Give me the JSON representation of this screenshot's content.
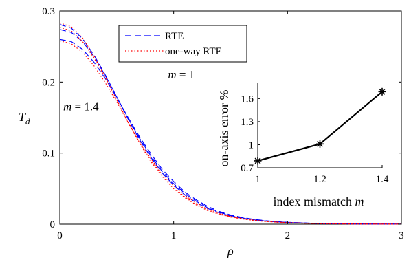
{
  "chart_data": [
    {
      "type": "line",
      "title": "",
      "xlabel": "ρ",
      "ylabel": "T_d",
      "ylabel_parts": {
        "base": "T",
        "sub": "d"
      },
      "xlim": [
        0,
        3
      ],
      "ylim": [
        0,
        0.3
      ],
      "xticks": [
        0,
        1,
        2,
        3
      ],
      "xtick_labels": [
        "0",
        "1",
        "2",
        "3"
      ],
      "yticks": [
        0,
        0.1,
        0.2,
        0.3
      ],
      "ytick_labels": [
        "0",
        "0.1",
        "0.2",
        "0.3"
      ],
      "grid": false,
      "legend": {
        "placement": "top-center",
        "entries": [
          {
            "label": "RTE",
            "color": "#0000ff",
            "style": "dashed"
          },
          {
            "label": "one-way RTE",
            "color": "#ff0000",
            "style": "dotted"
          }
        ]
      },
      "annotations": [
        {
          "text": "m = 1",
          "var": "m",
          "rest": " = 1",
          "x": 0.95,
          "y": 0.205
        },
        {
          "text": "m = 1.4",
          "var": "m",
          "rest": " = 1.4",
          "x": 0.03,
          "y": 0.16
        }
      ],
      "x": [
        0,
        0.1,
        0.2,
        0.3,
        0.4,
        0.5,
        0.6,
        0.7,
        0.8,
        0.9,
        1.0,
        1.1,
        1.2,
        1.3,
        1.4,
        1.5,
        1.6,
        1.7,
        1.8,
        1.9,
        2.0,
        2.2,
        2.4,
        2.6,
        2.8,
        3.0
      ],
      "series": [
        {
          "label_for": "m = 1",
          "color": "#0000ff",
          "style": "dashed",
          "values": [
            0.281,
            0.276,
            0.261,
            0.238,
            0.21,
            0.179,
            0.148,
            0.119,
            0.094,
            0.072,
            0.055,
            0.041,
            0.03,
            0.022,
            0.016,
            0.0115,
            0.0085,
            0.0062,
            0.0045,
            0.0033,
            0.0024,
            0.0013,
            0.0007,
            0.0004,
            0.0002,
            0.0001
          ]
        },
        {
          "color": "#0000ff",
          "style": "dashed",
          "values": [
            0.274,
            0.27,
            0.257,
            0.236,
            0.209,
            0.179,
            0.149,
            0.121,
            0.096,
            0.074,
            0.057,
            0.043,
            0.032,
            0.023,
            0.017,
            0.012,
            0.009,
            0.0065,
            0.0047,
            0.0034,
            0.0025,
            0.0014,
            0.0008,
            0.0004,
            0.0002,
            0.0001
          ]
        },
        {
          "label_for": "m = 1.4",
          "color": "#0000ff",
          "style": "dashed",
          "values": [
            0.26,
            0.257,
            0.246,
            0.228,
            0.205,
            0.178,
            0.15,
            0.123,
            0.099,
            0.077,
            0.06,
            0.045,
            0.034,
            0.025,
            0.018,
            0.013,
            0.0095,
            0.0069,
            0.005,
            0.0036,
            0.0026,
            0.0014,
            0.0008,
            0.0004,
            0.0002,
            0.0001
          ]
        },
        {
          "color": "#ff0000",
          "style": "dotted",
          "values": [
            0.283,
            0.278,
            0.262,
            0.237,
            0.207,
            0.175,
            0.143,
            0.114,
            0.088,
            0.067,
            0.05,
            0.037,
            0.027,
            0.019,
            0.014,
            0.01,
            0.0073,
            0.0053,
            0.0038,
            0.0028,
            0.002,
            0.0011,
            0.0006,
            0.0003,
            0.0002,
            0.0001
          ]
        },
        {
          "color": "#ff0000",
          "style": "dotted",
          "values": [
            0.277,
            0.272,
            0.257,
            0.234,
            0.206,
            0.175,
            0.144,
            0.115,
            0.09,
            0.069,
            0.052,
            0.038,
            0.028,
            0.02,
            0.0145,
            0.0104,
            0.0076,
            0.0055,
            0.004,
            0.0029,
            0.0021,
            0.0011,
            0.0006,
            0.0003,
            0.0002,
            0.0001
          ]
        },
        {
          "color": "#ff0000",
          "style": "dotted",
          "values": [
            0.258,
            0.254,
            0.242,
            0.223,
            0.199,
            0.172,
            0.143,
            0.116,
            0.092,
            0.071,
            0.054,
            0.04,
            0.03,
            0.021,
            0.0155,
            0.011,
            0.008,
            0.0058,
            0.0042,
            0.003,
            0.0022,
            0.0012,
            0.0007,
            0.0003,
            0.0002,
            0.0001
          ]
        }
      ]
    },
    {
      "type": "line",
      "title": "",
      "xlabel": "index mismatch m",
      "xlabel_parts": {
        "text": "index mismatch ",
        "var": "m"
      },
      "ylabel": "on-axis error %",
      "xlim": [
        1,
        1.4
      ],
      "ylim": [
        0.7,
        1.8
      ],
      "xticks": [
        1,
        1.2,
        1.4
      ],
      "xtick_labels": [
        "1",
        "1.2",
        "1.4"
      ],
      "yticks": [
        0.7,
        1,
        1.3,
        1.6
      ],
      "ytick_labels": [
        "0.7",
        "1",
        "1.3",
        "1.6"
      ],
      "grid": false,
      "series": [
        {
          "color": "#000000",
          "marker": "asterisk",
          "x": [
            1,
            1.2,
            1.4
          ],
          "values": [
            0.79,
            1.01,
            1.69
          ]
        }
      ]
    }
  ]
}
